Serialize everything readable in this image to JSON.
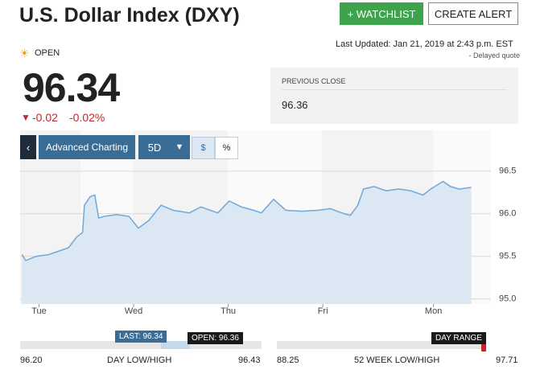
{
  "header": {
    "title": "U.S. Dollar Index (DXY)",
    "watchlist": "+ WATCHLIST",
    "create_alert": "CREATE ALERT"
  },
  "quote": {
    "status": "OPEN",
    "last_updated": "Last Updated: Jan 21, 2019 at 2:43 p.m. EST",
    "delayed": "- Delayed quote",
    "price": "96.34",
    "change": "-0.02",
    "change_pct": "-0.02%",
    "previous_close_label": "PREVIOUS CLOSE",
    "previous_close": "96.36"
  },
  "toolbar": {
    "advanced": "Advanced Charting",
    "range": "5D",
    "dollar": "$",
    "percent": "%"
  },
  "chart_data": {
    "type": "line",
    "color": "#6fa8dc",
    "fill": "#dbe7f2",
    "x": [
      0.02,
      0.06,
      0.17,
      0.3,
      0.51,
      0.6,
      0.66,
      0.68,
      0.74,
      0.79,
      0.83,
      0.89,
      1.02,
      1.15,
      1.25,
      1.36,
      1.49,
      1.62,
      1.79,
      1.91,
      2.09,
      2.21,
      2.34,
      2.47,
      2.55,
      2.68,
      2.81,
      2.98,
      3.15,
      3.28,
      3.4,
      3.49,
      3.57,
      3.63,
      3.74,
      3.87,
      4.0,
      4.13,
      4.26,
      4.34,
      4.47,
      4.55,
      4.64,
      4.77
    ],
    "values": [
      95.52,
      95.45,
      95.5,
      95.52,
      95.6,
      95.73,
      95.78,
      96.1,
      96.2,
      96.22,
      95.95,
      95.97,
      95.99,
      95.97,
      95.83,
      95.92,
      96.1,
      96.04,
      96.01,
      96.08,
      96.01,
      96.15,
      96.08,
      96.04,
      96.01,
      96.17,
      96.04,
      96.03,
      96.04,
      96.06,
      96.01,
      95.98,
      96.1,
      96.29,
      96.32,
      96.27,
      96.29,
      96.27,
      96.22,
      96.29,
      96.38,
      96.32,
      96.29,
      96.31
    ],
    "xlim": [
      0,
      4.79
    ],
    "xticks": [
      {
        "value": 0.2,
        "label": "Tue"
      },
      {
        "value": 1.2,
        "label": "Wed"
      },
      {
        "value": 2.2,
        "label": "Thu"
      },
      {
        "value": 3.2,
        "label": "Fri"
      },
      {
        "value": 4.37,
        "label": "Mon"
      }
    ],
    "ylim": [
      94.94,
      96.98
    ],
    "yticks": [
      {
        "value": 95,
        "label": "95.0"
      },
      {
        "value": 95.5,
        "label": "95.5"
      },
      {
        "value": 96,
        "label": "96.0"
      },
      {
        "value": 96.5,
        "label": "96.5"
      }
    ],
    "grid": true
  },
  "ranges": {
    "last": "LAST: 96.34",
    "open": "OPEN: 96.36",
    "day_low": "96.20",
    "day_label": "DAY LOW/HIGH",
    "day_high": "96.43",
    "week_badge": "DAY RANGE",
    "week_low": "88.25",
    "week_label": "52 WEEK LOW/HIGH",
    "week_high": "97.71"
  }
}
